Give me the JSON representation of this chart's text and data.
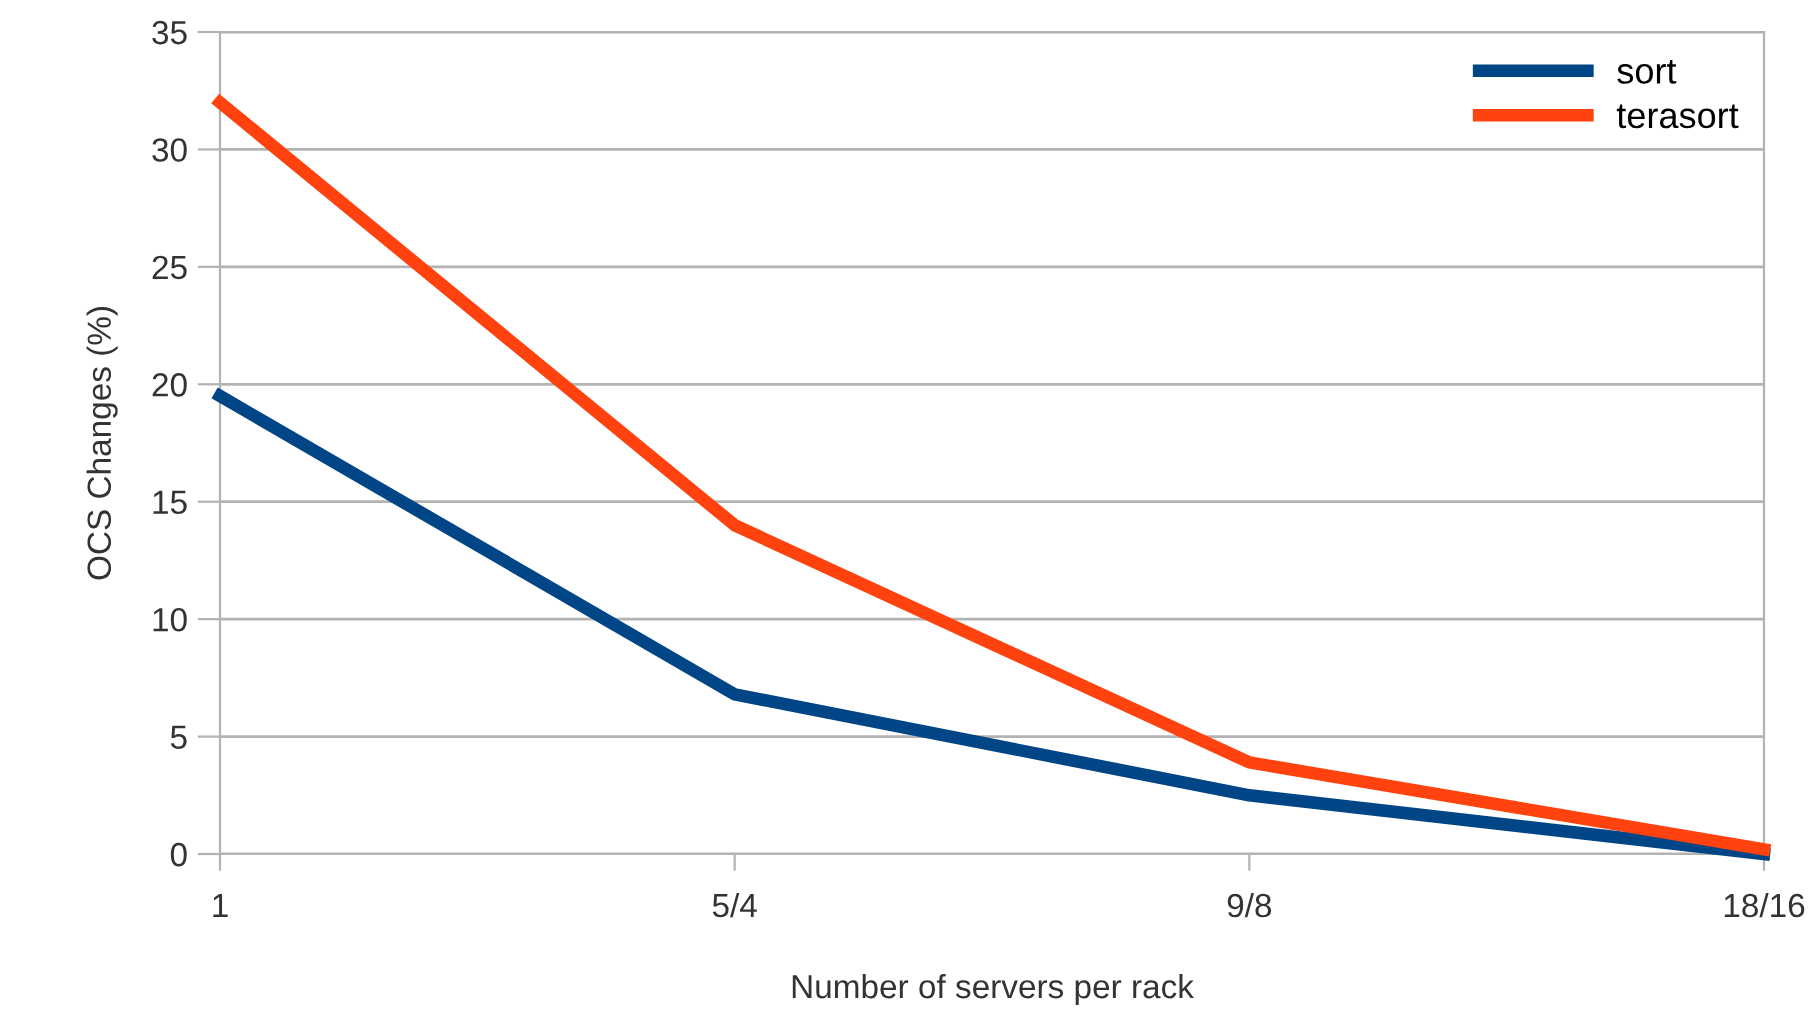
{
  "chart_data": {
    "type": "line",
    "xlabel": "Number of servers per rack",
    "ylabel": "OCS Changes (%)",
    "categories": [
      "1",
      "5/4",
      "9/8",
      "18/16"
    ],
    "series": [
      {
        "name": "sort",
        "color": "#004586",
        "values": [
          19.5,
          6.8,
          2.5,
          0
        ]
      },
      {
        "name": "terasort",
        "color": "#ff420e",
        "values": [
          32,
          14,
          3.9,
          0.2
        ]
      }
    ],
    "ylim": [
      0,
      35
    ],
    "yticks": [
      0,
      5,
      10,
      15,
      20,
      25,
      30,
      35
    ],
    "grid": "y",
    "legend": "top right",
    "line_style": "solid",
    "marker": "none"
  }
}
